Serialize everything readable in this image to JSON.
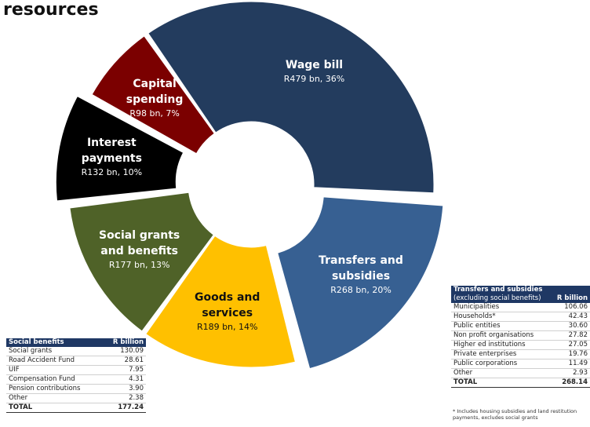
{
  "chart_data": {
    "type": "donut",
    "title": "resources",
    "categories": [
      "Wage bill",
      "Transfers and subsidies",
      "Goods and services",
      "Social grants and benefits",
      "Interest payments",
      "Capital spending"
    ],
    "values": [
      479,
      268,
      189,
      177,
      132,
      98
    ],
    "value_labels": [
      "R479 bn, 36%",
      "R268 bn, 20%",
      "R189 bn, 14%",
      "R177 bn, 13%",
      "R132 bn, 10%",
      "R98 bn, 7%"
    ],
    "colors": [
      "#233c5e",
      "#376092",
      "#ffc000",
      "#4f6228",
      "#000000",
      "#7b0000"
    ],
    "exploded": [
      false,
      true,
      false,
      false,
      true,
      false
    ]
  },
  "tables": [
    {
      "header": [
        "Social benefits",
        "R billion"
      ],
      "rows": [
        [
          "Social grants",
          "130.09"
        ],
        [
          "Road Accident Fund",
          "28.61"
        ],
        [
          "UIF",
          "7.95"
        ],
        [
          "Compensation Fund",
          "4.31"
        ],
        [
          "Pension contributions",
          "3.90"
        ],
        [
          "Other",
          "2.38"
        ]
      ],
      "total": [
        "TOTAL",
        "177.24"
      ]
    },
    {
      "header": [
        "Transfers and subsidies",
        "(excluding social benefits)",
        "R billion"
      ],
      "rows": [
        [
          "Municipalities",
          "106.06"
        ],
        [
          "Households*",
          "42.43"
        ],
        [
          "Public entities",
          "30.60"
        ],
        [
          "Non profit organisations",
          "27.82"
        ],
        [
          "Higher ed institutions",
          "27.05"
        ],
        [
          "Private enterprises",
          "19.76"
        ],
        [
          "Public corporations",
          "11.49"
        ],
        [
          "Other",
          "2.93"
        ]
      ],
      "total": [
        "TOTAL",
        "268.14"
      ],
      "note": "* Includes housing subsidies and land restitution payments, excludes social grants"
    }
  ]
}
